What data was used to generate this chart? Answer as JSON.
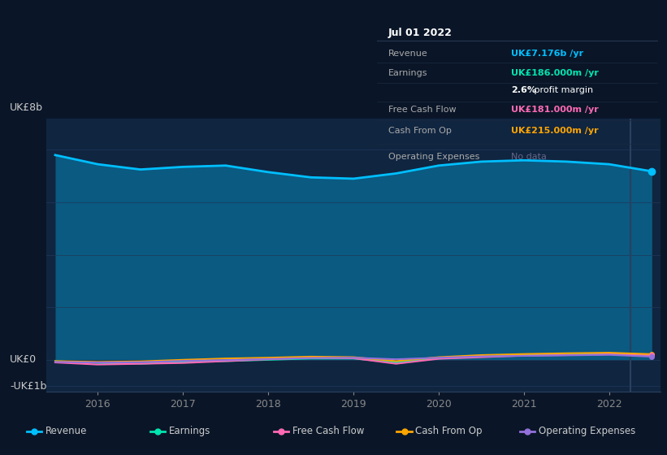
{
  "bg_color": "#0a1628",
  "chart_bg2": "#102540",
  "tick_color": "#888888",
  "ylabel_top": "UK£8b",
  "ylabel_zero": "UK£0",
  "ylabel_neg": "-UK£1b",
  "ylim": [
    -1200000000.0,
    9200000000.0
  ],
  "x_years": [
    2015.5,
    2016,
    2016.5,
    2017,
    2017.5,
    2018,
    2018.5,
    2019,
    2019.5,
    2020,
    2020.5,
    2021,
    2021.5,
    2022,
    2022.5
  ],
  "revenue": [
    7800000000.0,
    7450000000.0,
    7250000000.0,
    7350000000.0,
    7400000000.0,
    7150000000.0,
    6950000000.0,
    6900000000.0,
    7100000000.0,
    7400000000.0,
    7550000000.0,
    7600000000.0,
    7550000000.0,
    7450000000.0,
    7180000000.0
  ],
  "earnings": [
    -50000000.0,
    -120000000.0,
    -150000000.0,
    -80000000.0,
    -50000000.0,
    0.0,
    50000000.0,
    50000000.0,
    -100000000.0,
    50000000.0,
    120000000.0,
    180000000.0,
    200000000.0,
    220000000.0,
    190000000.0
  ],
  "free_cash_flow": [
    -100000000.0,
    -180000000.0,
    -150000000.0,
    -120000000.0,
    -50000000.0,
    20000000.0,
    80000000.0,
    60000000.0,
    -150000000.0,
    40000000.0,
    100000000.0,
    160000000.0,
    180000000.0,
    210000000.0,
    180000000.0
  ],
  "cash_from_op": [
    -50000000.0,
    -80000000.0,
    -60000000.0,
    0.0,
    50000000.0,
    80000000.0,
    120000000.0,
    100000000.0,
    -50000000.0,
    100000000.0,
    180000000.0,
    220000000.0,
    250000000.0,
    270000000.0,
    215000000.0
  ],
  "op_expenses": [
    -80000000.0,
    -100000000.0,
    -90000000.0,
    -40000000.0,
    -10000000.0,
    30000000.0,
    70000000.0,
    80000000.0,
    20000000.0,
    80000000.0,
    130000000.0,
    150000000.0,
    170000000.0,
    190000000.0,
    120000000.0
  ],
  "revenue_color": "#00bfff",
  "earnings_color": "#00e6b0",
  "free_cash_flow_color": "#ff69b4",
  "cash_from_op_color": "#ffa500",
  "op_expenses_color": "#9370db",
  "xtick_positions": [
    2016,
    2017,
    2018,
    2019,
    2020,
    2021,
    2022
  ],
  "xtick_labels": [
    "2016",
    "2017",
    "2018",
    "2019",
    "2020",
    "2021",
    "2022"
  ],
  "vline_x": 2022.25,
  "tooltip": {
    "date": "Jul 01 2022",
    "revenue_val": "UK£7.176b",
    "revenue_color": "#00bfff",
    "earnings_val": "UK£186.000m",
    "earnings_color": "#00e6b0",
    "profit_margin": "2.6%",
    "fcf_val": "UK£181.000m",
    "fcf_color": "#ff69b4",
    "cashop_val": "UK£215.000m",
    "cashop_color": "#ffa500",
    "opex_color": "#666688"
  },
  "legend_items": [
    {
      "label": "Revenue",
      "color": "#00bfff"
    },
    {
      "label": "Earnings",
      "color": "#00e6b0"
    },
    {
      "label": "Free Cash Flow",
      "color": "#ff69b4"
    },
    {
      "label": "Cash From Op",
      "color": "#ffa500"
    },
    {
      "label": "Operating Expenses",
      "color": "#9370db"
    }
  ]
}
